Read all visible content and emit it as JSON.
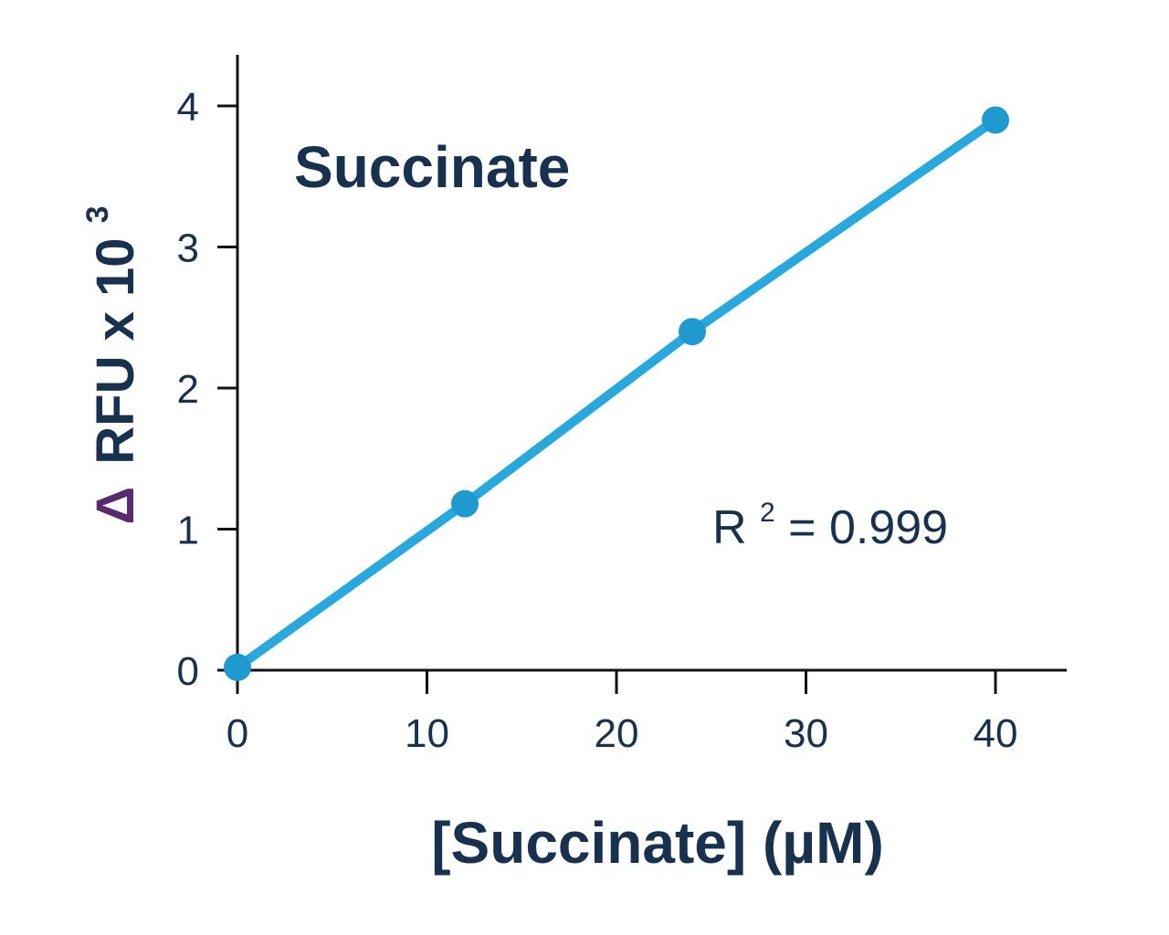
{
  "chart_data": {
    "type": "line",
    "title": "Succinate",
    "xlabel": "[Succinate] (µM)",
    "ylabel_prefix": "Δ",
    "ylabel_main": "RFU x 10",
    "ylabel_exponent": "3",
    "x": [
      0,
      12,
      24,
      40
    ],
    "series": [
      {
        "values": [
          0.02,
          1.18,
          2.4,
          3.9
        ]
      }
    ],
    "xlim": [
      0,
      42
    ],
    "ylim": [
      0,
      4.4
    ],
    "x_ticks": [
      0,
      10,
      20,
      30,
      40
    ],
    "y_ticks": [
      0,
      1,
      2,
      3,
      4
    ],
    "x_tick_labels": [
      "0",
      "10",
      "20",
      "30",
      "40"
    ],
    "y_tick_labels": [
      "0",
      "1",
      "2",
      "3",
      "4"
    ],
    "annotation": {
      "base": "R",
      "superscript": "2",
      "rest": "= 0.999"
    },
    "grid": false,
    "legend": "none",
    "colors": {
      "line": "#29a8dd",
      "marker": "#1f9ad1",
      "text": "#17314f",
      "delta": "#5b2a6e",
      "axis": "#111111"
    }
  }
}
